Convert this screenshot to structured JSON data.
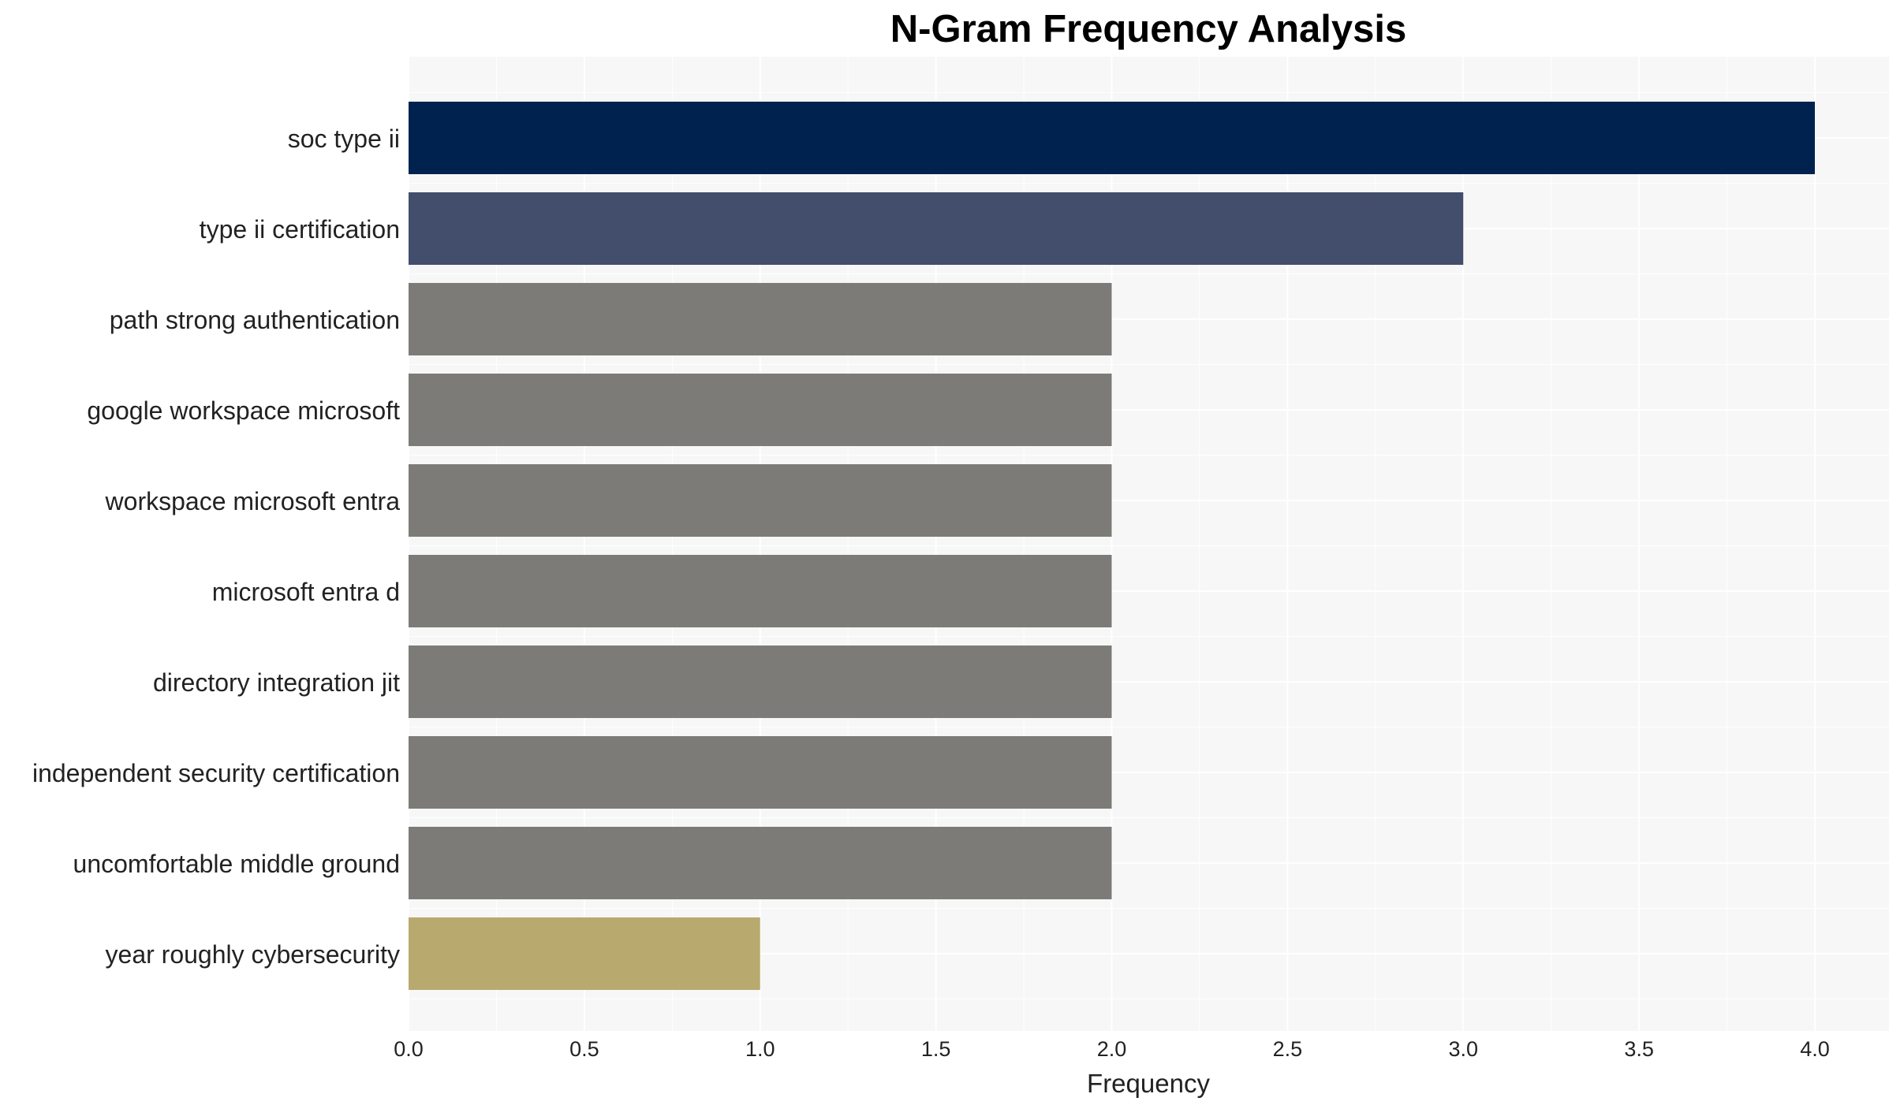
{
  "chart_data": {
    "type": "bar",
    "orientation": "horizontal",
    "title": "N-Gram Frequency Analysis",
    "xlabel": "Frequency",
    "ylabel": "",
    "xlim": [
      0,
      4.2
    ],
    "xticks": [
      "0.0",
      "0.5",
      "1.0",
      "1.5",
      "2.0",
      "2.5",
      "3.0",
      "3.5",
      "4.0"
    ],
    "grid": true,
    "categories": [
      "soc type ii",
      "type ii certification",
      "path strong authentication",
      "google workspace microsoft",
      "workspace microsoft entra",
      "microsoft entra d",
      "directory integration jit",
      "independent security certification",
      "uncomfortable middle ground",
      "year roughly cybersecurity"
    ],
    "values": [
      4,
      3,
      2,
      2,
      2,
      2,
      2,
      2,
      2,
      1
    ],
    "colors": [
      "#00224e",
      "#434e6c",
      "#7c7b78",
      "#7c7b78",
      "#7c7b78",
      "#7c7b78",
      "#7c7b78",
      "#7c7b78",
      "#7c7b78",
      "#b8aa6e"
    ],
    "plot_background": "#f7f7f7",
    "grid_color": "#ffffff"
  }
}
